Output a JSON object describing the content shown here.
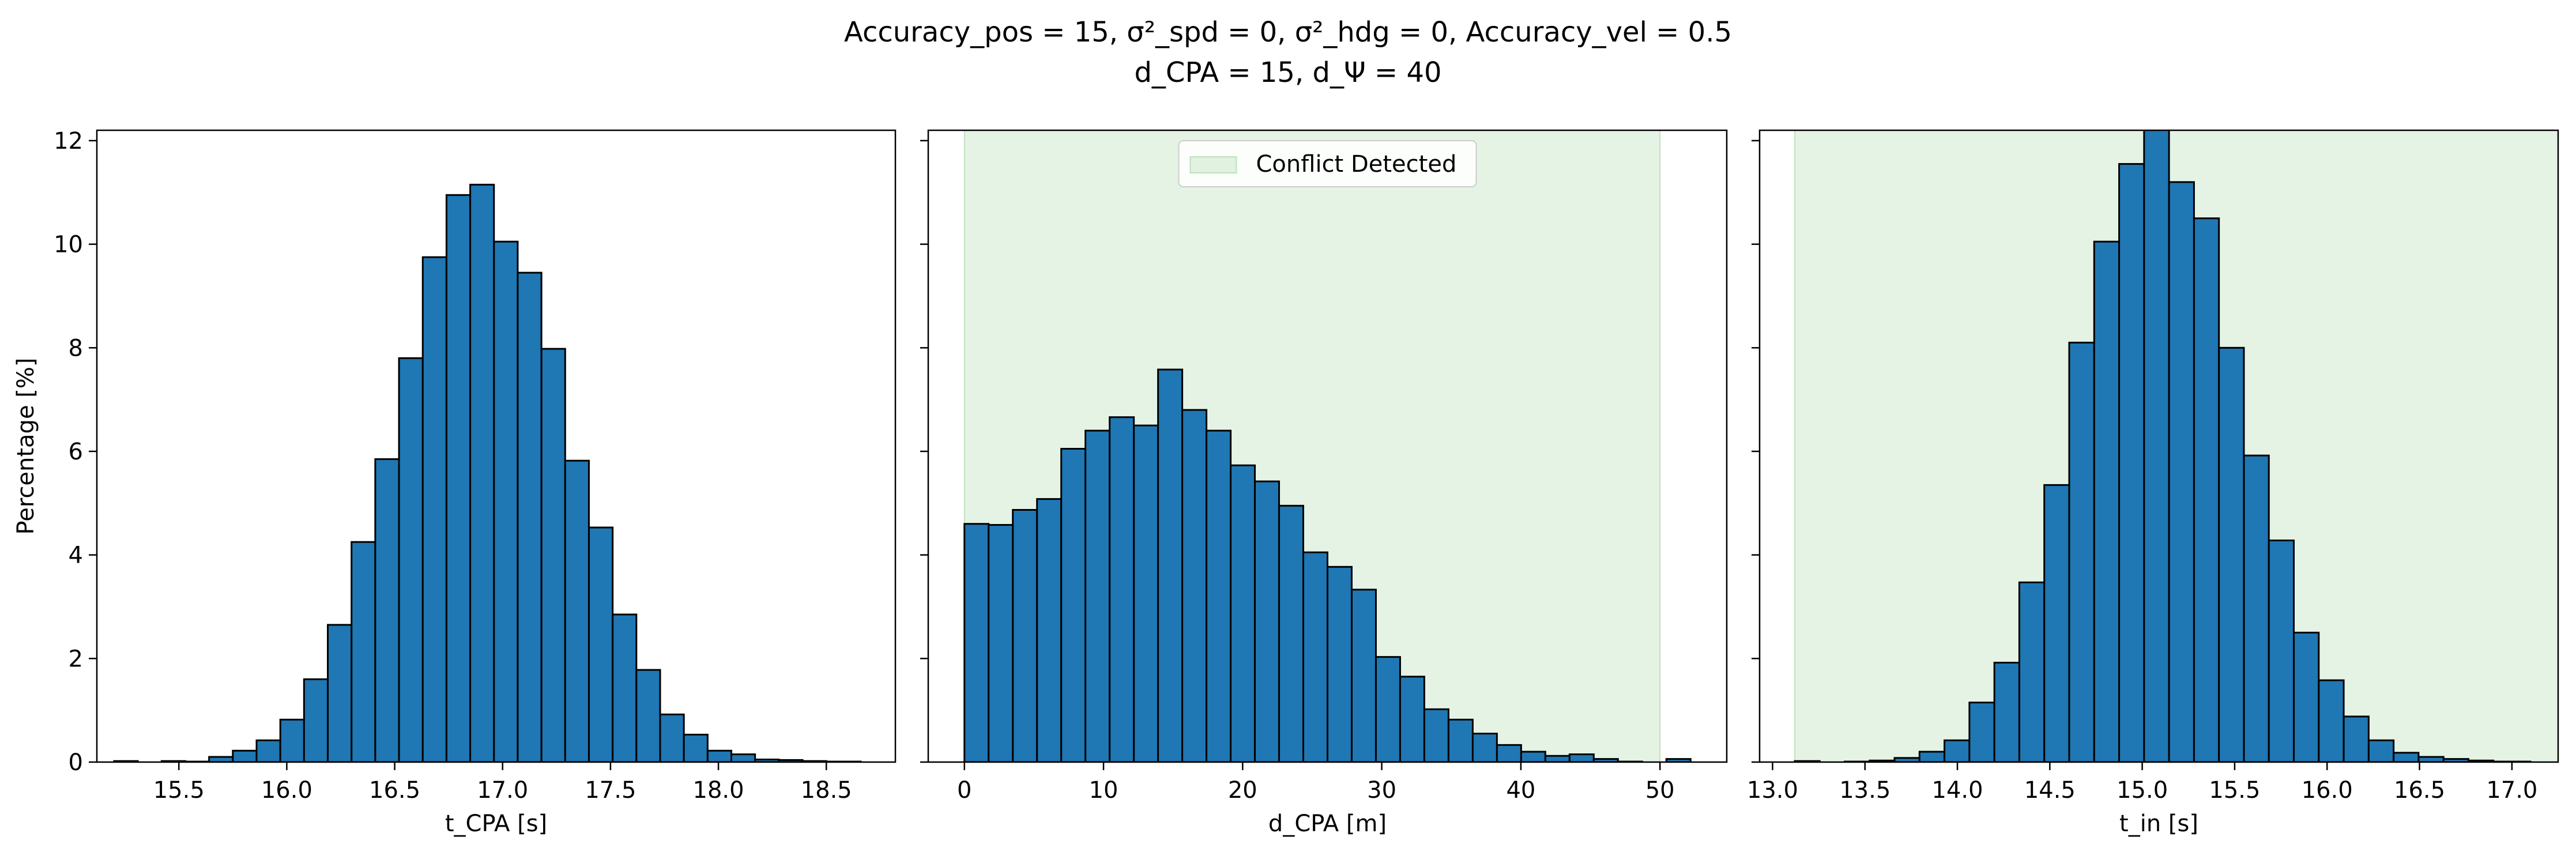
{
  "figure": {
    "title_line1": "Accuracy_pos = 15, σ²_spd = 0, σ²_hdg = 0, Accuracy_vel = 0.5",
    "title_line2": "d_CPA = 15, d_Ψ = 40"
  },
  "colors": {
    "bar": "#1f77b4",
    "edge": "#000000",
    "conflict": "#c8e6c9"
  },
  "chart_data": [
    {
      "type": "bar",
      "title": "",
      "xlabel": "t_CPA [s]",
      "ylabel": "Percentage [%]",
      "xlim": [
        15.12,
        18.82
      ],
      "ylim": [
        0,
        12.2
      ],
      "xticks": [
        15.5,
        16.0,
        16.5,
        17.0,
        17.5,
        18.0,
        18.5
      ],
      "yticks": [
        0,
        2,
        4,
        6,
        8,
        10,
        12
      ],
      "bin_edges": [
        15.2,
        15.31,
        15.42,
        15.53,
        15.64,
        15.75,
        15.86,
        15.97,
        16.08,
        16.19,
        16.3,
        16.41,
        16.52,
        16.63,
        16.74,
        16.85,
        16.96,
        17.07,
        17.18,
        17.29,
        17.4,
        17.51,
        17.62,
        17.73,
        17.84,
        17.95,
        18.06,
        18.17,
        18.28,
        18.39,
        18.5,
        18.66
      ],
      "values": [
        0.02,
        0.0,
        0.02,
        0.01,
        0.1,
        0.22,
        0.42,
        0.82,
        1.6,
        2.65,
        4.25,
        5.85,
        7.8,
        9.75,
        10.95,
        11.15,
        10.05,
        9.45,
        7.98,
        5.82,
        4.53,
        2.85,
        1.78,
        0.92,
        0.53,
        0.22,
        0.15,
        0.05,
        0.04,
        0.02,
        0.01
      ],
      "conflict_span": null
    },
    {
      "type": "bar",
      "title": "",
      "xlabel": "d_CPA [m]",
      "ylabel": "",
      "xlim": [
        -2.6,
        54.8
      ],
      "ylim": [
        0,
        12.2
      ],
      "xticks": [
        0,
        10,
        20,
        30,
        40,
        50
      ],
      "yticks": [
        0,
        2,
        4,
        6,
        8,
        10,
        12
      ],
      "bin_edges": [
        0,
        1.74,
        3.48,
        5.22,
        6.96,
        8.7,
        10.44,
        12.18,
        13.92,
        15.66,
        17.4,
        19.14,
        20.88,
        22.62,
        24.36,
        26.1,
        27.84,
        29.58,
        31.32,
        33.06,
        34.8,
        36.54,
        38.28,
        40.02,
        41.76,
        43.5,
        45.24,
        46.98,
        48.72,
        50.46,
        52.2
      ],
      "values": [
        4.6,
        4.58,
        4.87,
        5.08,
        6.05,
        6.4,
        6.66,
        6.5,
        7.58,
        6.8,
        6.4,
        5.73,
        5.42,
        4.95,
        4.05,
        3.77,
        3.33,
        2.03,
        1.65,
        1.02,
        0.82,
        0.55,
        0.33,
        0.2,
        0.12,
        0.15,
        0.06,
        0.01,
        0.0,
        0.06
      ],
      "conflict_span": [
        0,
        50
      ],
      "legend": {
        "label": "Conflict Detected",
        "placement": "upper center"
      }
    },
    {
      "type": "bar",
      "title": "",
      "xlabel": "t_in [s]",
      "ylabel": "",
      "xlim": [
        12.93,
        17.25
      ],
      "ylim": [
        0,
        12.2
      ],
      "xticks": [
        13.0,
        13.5,
        14.0,
        14.5,
        15.0,
        15.5,
        16.0,
        16.5,
        17.0
      ],
      "yticks": [
        0,
        2,
        4,
        6,
        8,
        10,
        12
      ],
      "bin_edges": [
        13.12,
        13.255,
        13.39,
        13.525,
        13.66,
        13.795,
        13.93,
        14.065,
        14.2,
        14.335,
        14.47,
        14.605,
        14.74,
        14.875,
        15.01,
        15.145,
        15.28,
        15.415,
        15.55,
        15.685,
        15.82,
        15.955,
        16.09,
        16.225,
        16.36,
        16.495,
        16.63,
        16.765,
        16.9,
        17.035,
        17.1
      ],
      "values": [
        0.02,
        0.0,
        0.01,
        0.03,
        0.08,
        0.2,
        0.42,
        1.15,
        1.92,
        3.47,
        5.35,
        8.1,
        10.05,
        11.55,
        12.3,
        11.2,
        10.5,
        8.0,
        5.92,
        4.28,
        2.5,
        1.58,
        0.88,
        0.42,
        0.18,
        0.1,
        0.06,
        0.03,
        0.01,
        0.01
      ],
      "conflict_span": [
        13.12,
        17.25
      ]
    }
  ]
}
